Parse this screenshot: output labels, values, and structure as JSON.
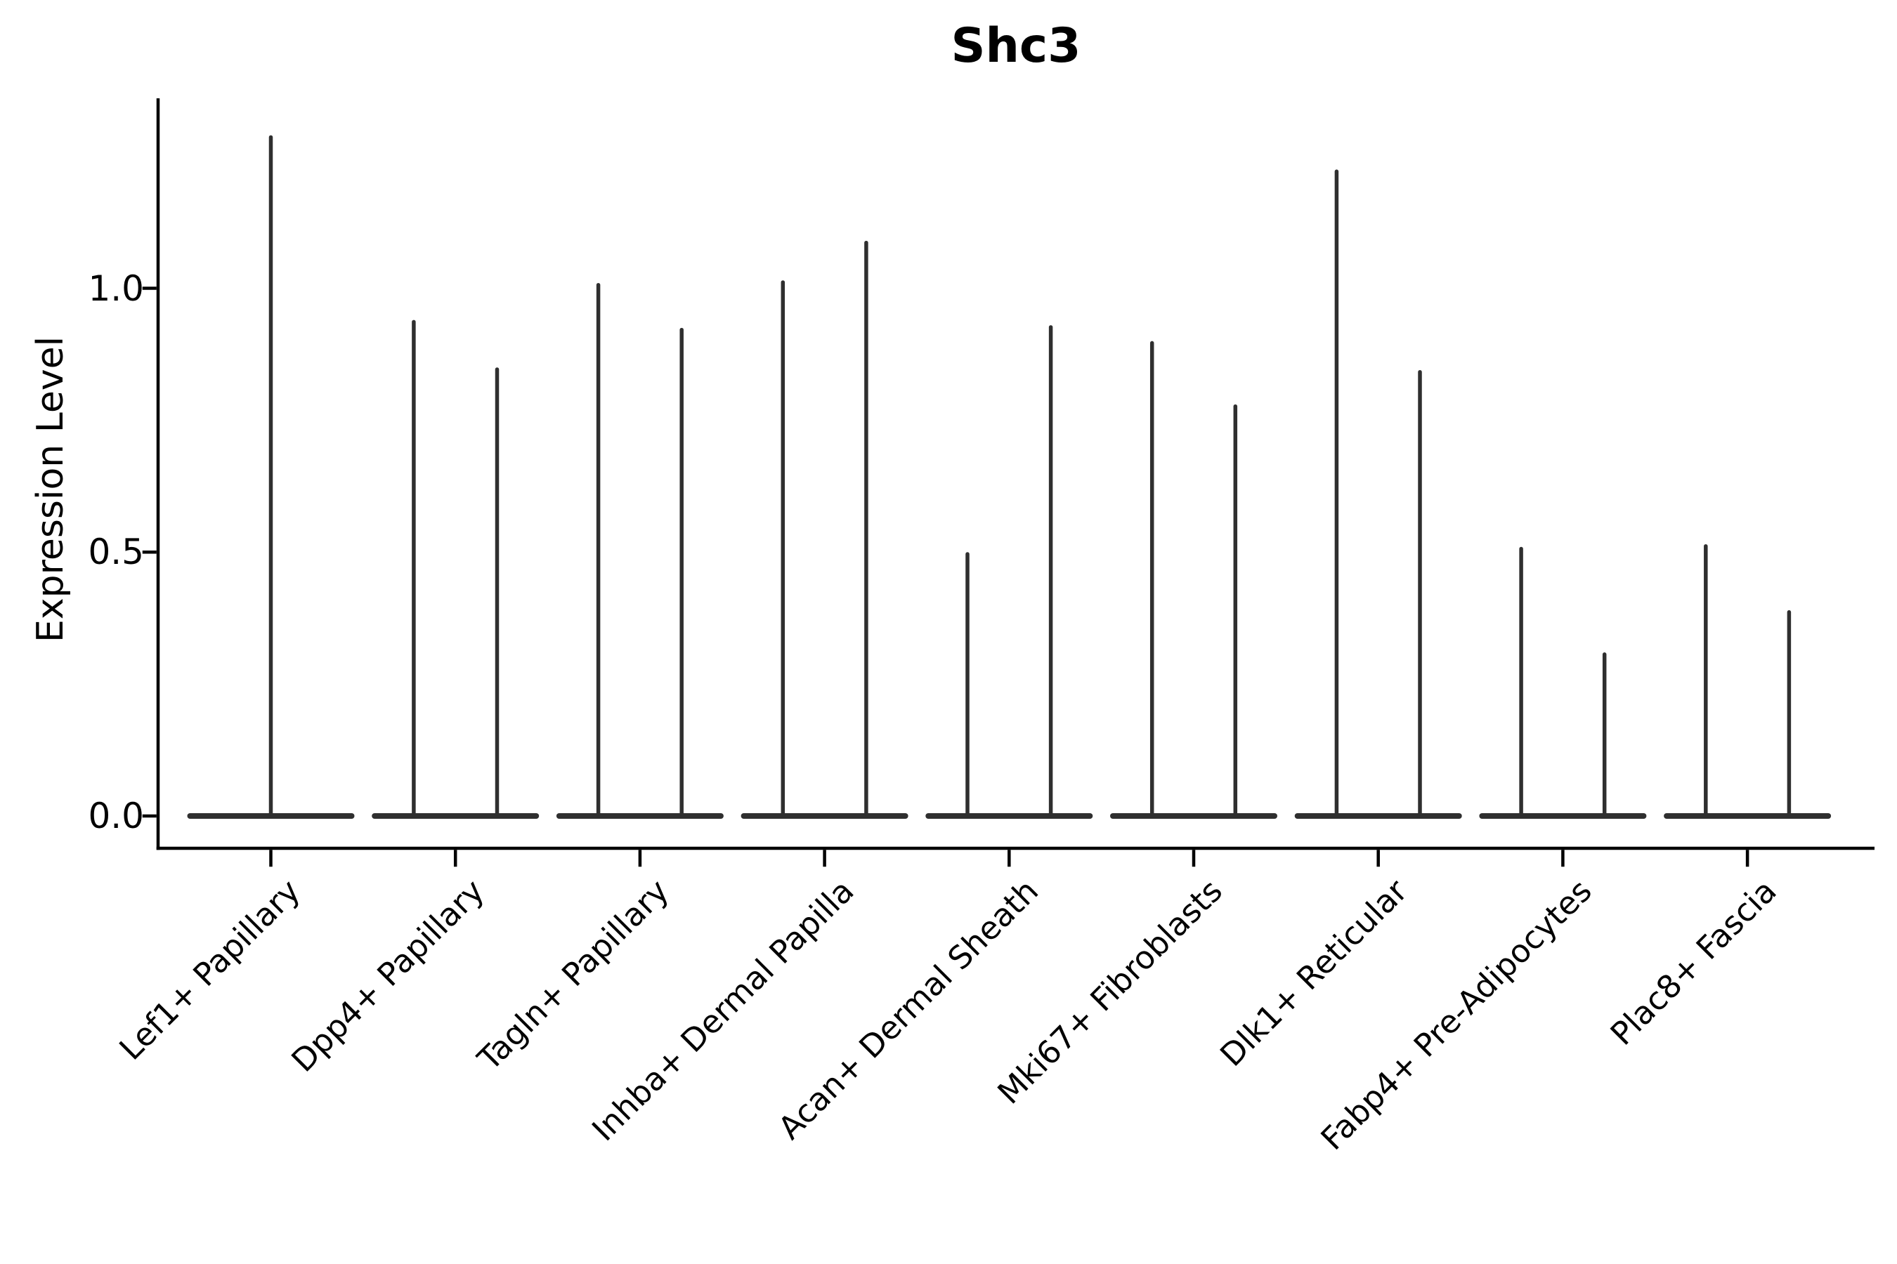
{
  "figure": {
    "background": "#ffffff"
  },
  "chart_data": {
    "type": "violin",
    "title": "Shc3",
    "ylabel": "Expression Level",
    "xlabel": "",
    "categories": [
      "Lef1+ Papillary",
      "Dpp4+ Papillary",
      "Tagln+ Papillary",
      "Inhba+ Dermal Papilla",
      "Acan+ Dermal Sheath",
      "Mki67+ Fibroblasts",
      "Dlk1+ Reticular",
      "Fabp4+ Pre-Adipocytes",
      "Plac8+ Fascia"
    ],
    "series": [
      {
        "category": "Lef1+ Papillary",
        "violin_max_expression": [
          1.29
        ]
      },
      {
        "category": "Dpp4+ Papillary",
        "violin_max_expression": [
          0.94,
          0.85
        ]
      },
      {
        "category": "Tagln+ Papillary",
        "violin_max_expression": [
          1.01,
          0.925
        ]
      },
      {
        "category": "Inhba+ Dermal Papilla",
        "violin_max_expression": [
          1.015,
          1.09
        ]
      },
      {
        "category": "Acan+ Dermal Sheath",
        "violin_max_expression": [
          0.5,
          0.93
        ]
      },
      {
        "category": "Mki67+ Fibroblasts",
        "violin_max_expression": [
          0.9,
          0.78
        ]
      },
      {
        "category": "Dlk1+ Reticular",
        "violin_max_expression": [
          1.225,
          0.845
        ]
      },
      {
        "category": "Fabp4+ Pre-Adipocytes",
        "violin_max_expression": [
          0.51,
          0.31
        ]
      },
      {
        "category": "Plac8+ Fascia",
        "violin_max_expression": [
          0.515,
          0.39
        ]
      }
    ],
    "distribution_note": "each violin is concentrated at 0 (wide flat base) with a thin spike up to its maximum value",
    "yticks": {
      "labels": [
        "0.0",
        "0.5",
        "1.0"
      ],
      "values": [
        0.0,
        0.5,
        1.0
      ]
    },
    "ylim": [
      -0.061,
      1.36
    ],
    "grid": false,
    "legend": null,
    "colors": {
      "violin": "#2f2f2f",
      "axis": "#000000",
      "text": "#000000",
      "background": "#ffffff"
    }
  }
}
